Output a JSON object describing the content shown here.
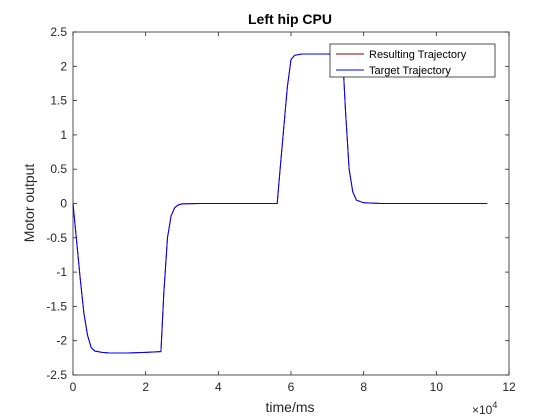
{
  "chart_data": {
    "type": "line",
    "title": "Left hip CPU",
    "xlabel": "time/ms",
    "ylabel": "Motor output",
    "x_exponent_label": "×10",
    "x_exponent": "4",
    "xlim": [
      0,
      12
    ],
    "ylim": [
      -2.5,
      2.5
    ],
    "xticks": [
      "0",
      "2",
      "4",
      "6",
      "8",
      "10",
      "12"
    ],
    "yticks": [
      "-2.5",
      "-2",
      "-1.5",
      "-1",
      "-0.5",
      "0",
      "0.5",
      "1",
      "1.5",
      "2",
      "2.5"
    ],
    "x_scale_note": "x values in units of 10^4 ms",
    "grid": false,
    "legend_position": "top-right",
    "series": [
      {
        "name": "Resulting Trajectory",
        "color": "#8b0000",
        "x": [
          0,
          0.1,
          0.2,
          0.3,
          0.4,
          0.5,
          0.6,
          0.8,
          1.0,
          1.5,
          2.0,
          2.4,
          2.42,
          2.5,
          2.6,
          2.7,
          2.8,
          2.9,
          3.0,
          3.5,
          4.0,
          5.0,
          5.6,
          5.62,
          5.7,
          5.8,
          5.9,
          6.0,
          6.1,
          6.3,
          6.6,
          7.0,
          7.4,
          7.42,
          7.5,
          7.6,
          7.7,
          7.8,
          8.0,
          8.5,
          9.0,
          10.0,
          11.0,
          11.4
        ],
        "y": [
          0.0,
          -0.55,
          -1.1,
          -1.6,
          -1.92,
          -2.1,
          -2.15,
          -2.17,
          -2.18,
          -2.18,
          -2.17,
          -2.16,
          -2.16,
          -1.3,
          -0.5,
          -0.18,
          -0.06,
          -0.02,
          -0.005,
          0,
          0,
          0,
          0,
          0,
          0.5,
          1.1,
          1.7,
          2.1,
          2.16,
          2.18,
          2.18,
          2.18,
          2.17,
          2.17,
          1.35,
          0.5,
          0.17,
          0.05,
          0.01,
          0,
          0,
          0,
          0,
          0
        ]
      },
      {
        "name": "Target Trajectory",
        "color": "#0000ff",
        "x": [
          0,
          0.1,
          0.2,
          0.3,
          0.4,
          0.5,
          0.6,
          0.8,
          1.0,
          1.5,
          2.0,
          2.4,
          2.42,
          2.5,
          2.6,
          2.7,
          2.8,
          2.9,
          3.0,
          3.5,
          4.0,
          5.0,
          5.6,
          5.62,
          5.7,
          5.8,
          5.9,
          6.0,
          6.1,
          6.3,
          6.6,
          7.0,
          7.4,
          7.42,
          7.5,
          7.6,
          7.7,
          7.8,
          8.0,
          8.5,
          9.0,
          10.0,
          11.0,
          11.4
        ],
        "y": [
          0.0,
          -0.55,
          -1.1,
          -1.6,
          -1.92,
          -2.1,
          -2.15,
          -2.17,
          -2.18,
          -2.18,
          -2.17,
          -2.16,
          -2.16,
          -1.3,
          -0.5,
          -0.18,
          -0.06,
          -0.02,
          -0.005,
          0,
          0,
          0,
          0,
          0,
          0.5,
          1.1,
          1.7,
          2.1,
          2.16,
          2.18,
          2.18,
          2.18,
          2.17,
          2.17,
          1.35,
          0.5,
          0.17,
          0.05,
          0.01,
          0,
          0,
          0,
          0,
          0
        ]
      }
    ]
  }
}
